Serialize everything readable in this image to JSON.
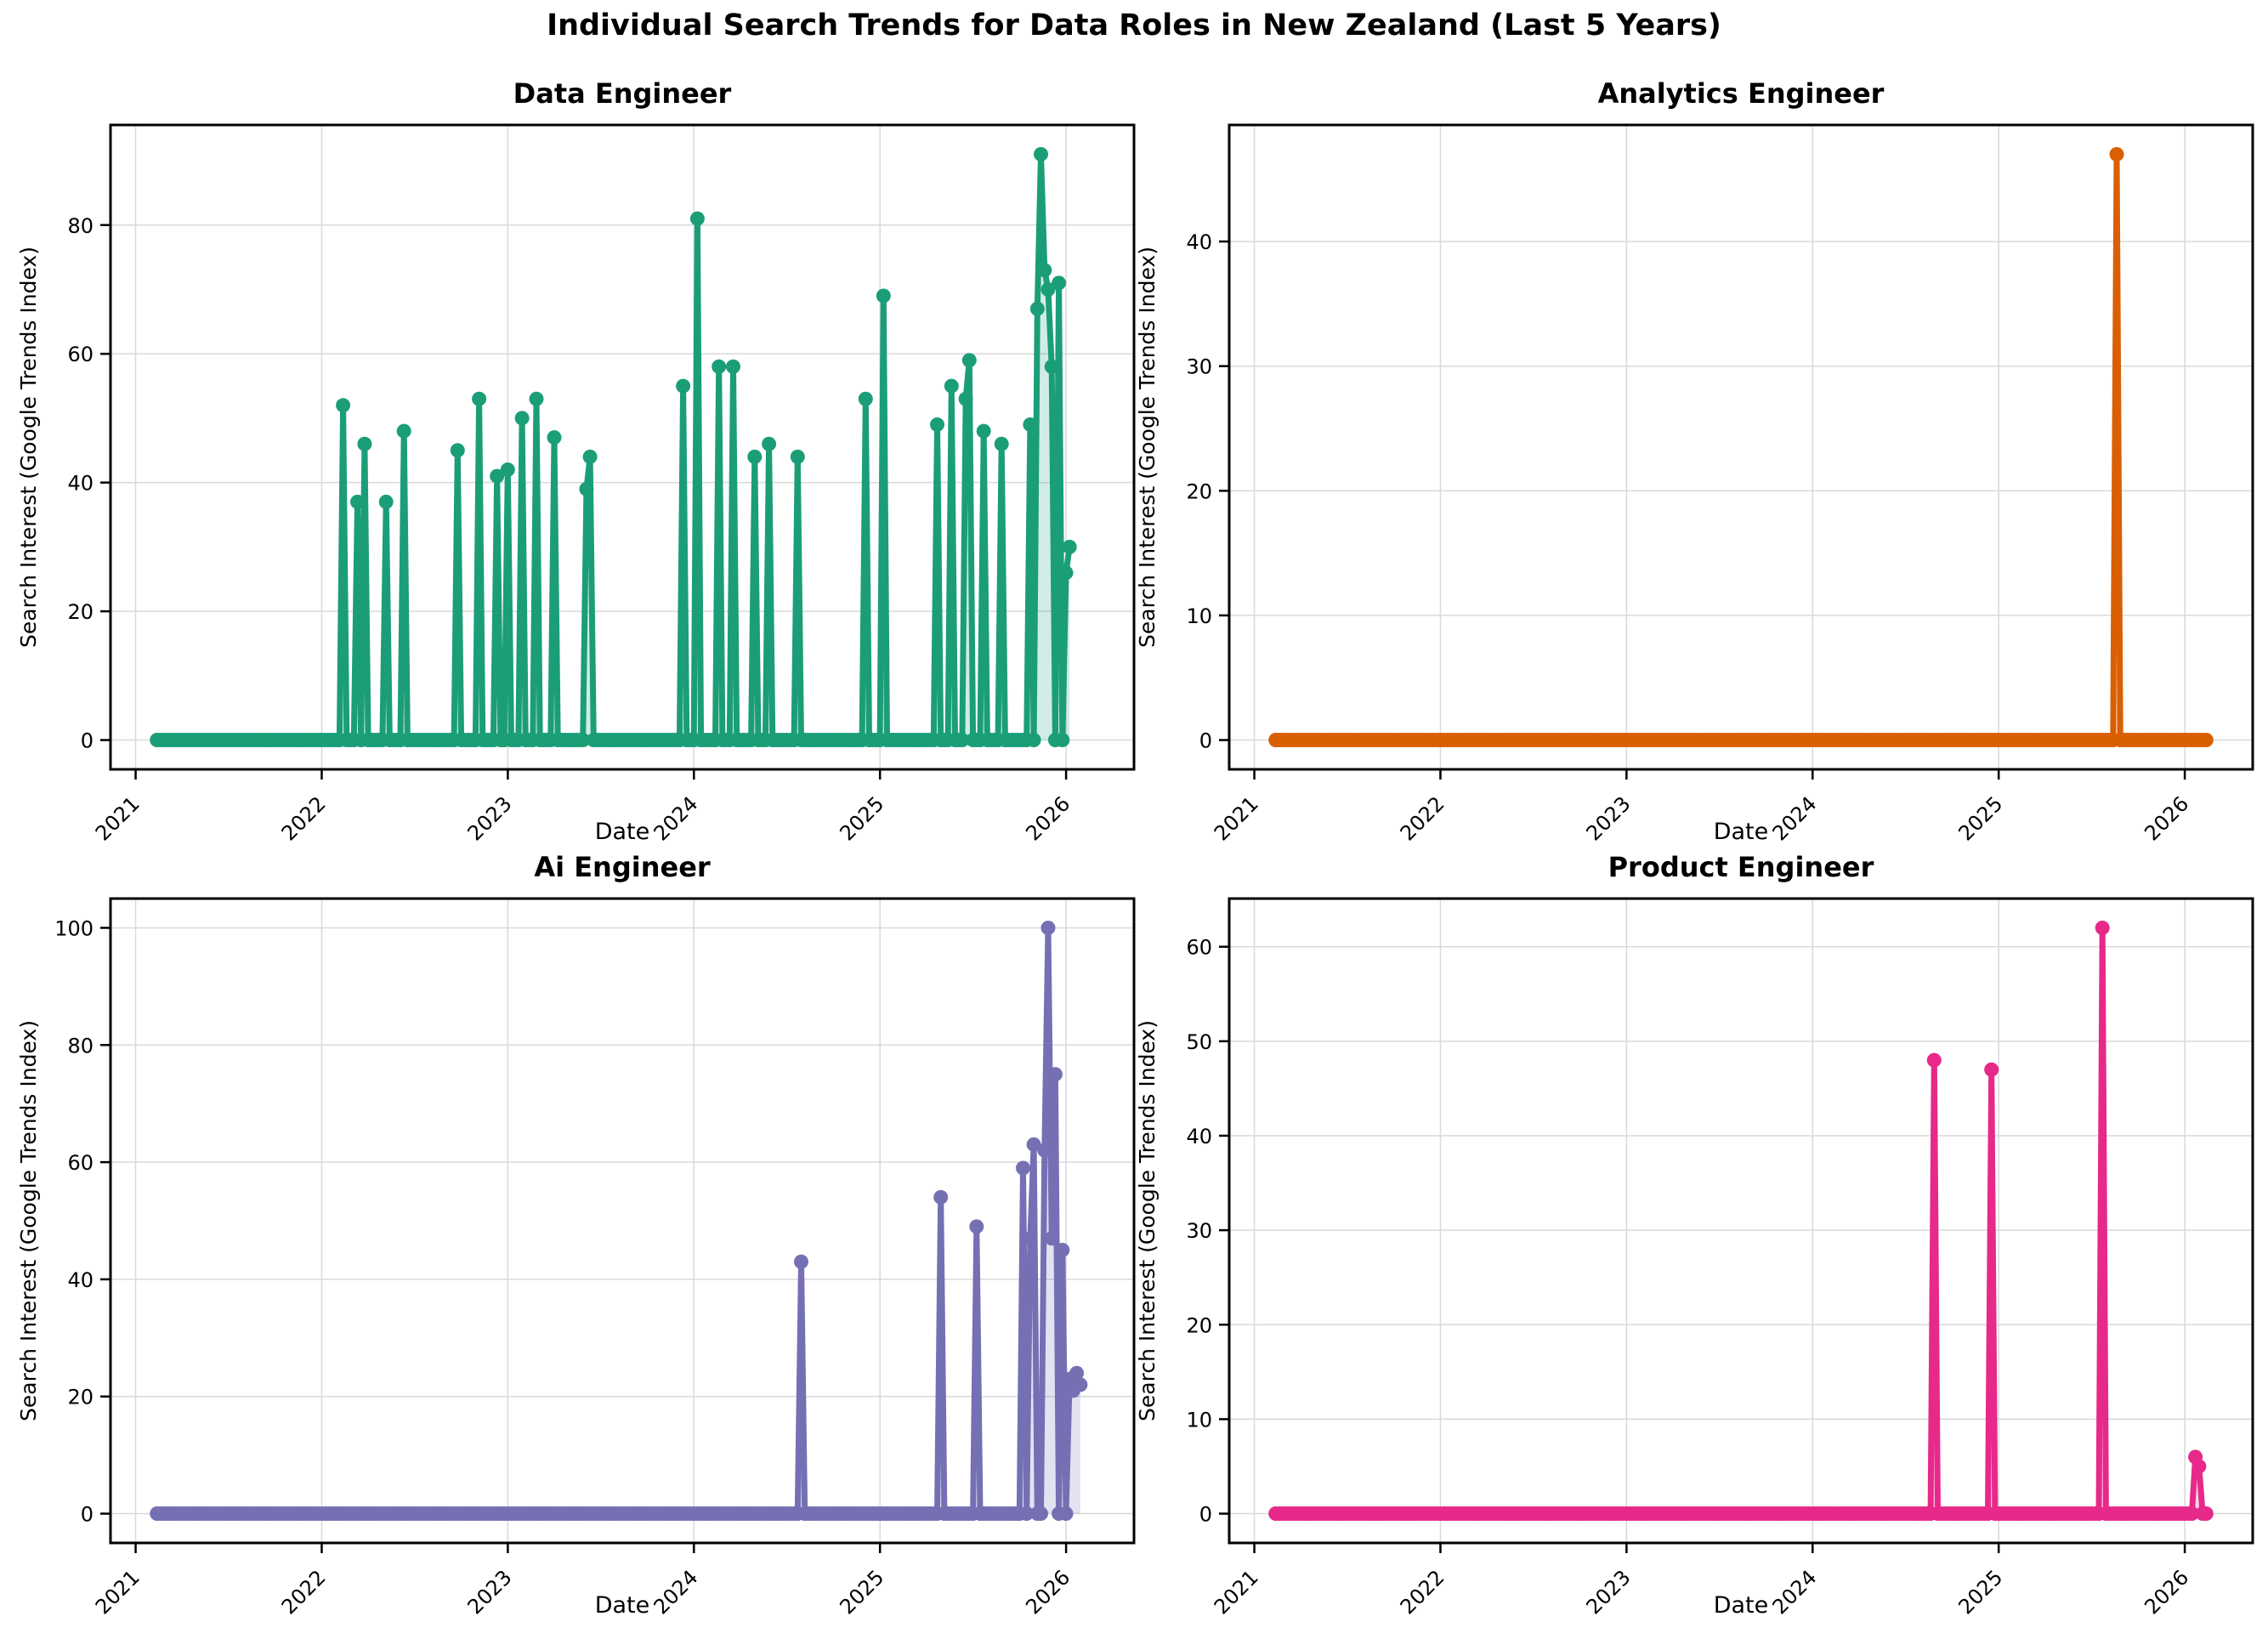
{
  "chart_data": {
    "type": "line",
    "suptitle": "Individual Search Trends for Data Roles in New Zealand (Last 5 Years)",
    "xlabel": "Date",
    "ylabel": "Search Interest (Google Trends Index)",
    "x_axis": {
      "start_year": 2021.115,
      "weeks_per_year": 52,
      "xlim": [
        2020.865,
        2026.365
      ],
      "ticks": [
        2021,
        2022,
        2023,
        2024,
        2025,
        2026
      ]
    },
    "charts": [
      {
        "title": "Data Engineer",
        "color": "#1b9e77",
        "fill_alpha": 0.2,
        "ylim": [
          -4.55,
          95.55
        ],
        "yticks": [
          0,
          20,
          40,
          60,
          80
        ],
        "end_week_index": 255,
        "spikes": [
          [
            2022.115,
            52
          ],
          [
            2022.19,
            37
          ],
          [
            2022.23,
            46
          ],
          [
            2022.35,
            37
          ],
          [
            2022.44,
            48
          ],
          [
            2022.73,
            45
          ],
          [
            2022.84,
            53
          ],
          [
            2022.94,
            41
          ],
          [
            2023.0,
            42
          ],
          [
            2023.08,
            50
          ],
          [
            2023.16,
            53
          ],
          [
            2023.25,
            47
          ],
          [
            2023.42,
            39
          ],
          [
            2023.44,
            44
          ],
          [
            2023.94,
            55
          ],
          [
            2024.02,
            81
          ],
          [
            2024.13,
            58
          ],
          [
            2024.21,
            58
          ],
          [
            2024.33,
            44
          ],
          [
            2024.4,
            46
          ],
          [
            2024.55,
            44
          ],
          [
            2024.93,
            53
          ],
          [
            2025.02,
            69
          ],
          [
            2025.3,
            49
          ],
          [
            2025.39,
            55
          ],
          [
            2025.46,
            53
          ],
          [
            2025.48,
            59
          ],
          [
            2025.56,
            48
          ],
          [
            2025.65,
            46
          ],
          [
            2025.8,
            49
          ],
          [
            2025.84,
            67
          ],
          [
            2025.87,
            91
          ],
          [
            2025.89,
            73
          ],
          [
            2025.91,
            70
          ],
          [
            2025.93,
            58
          ],
          [
            2025.97,
            71
          ],
          [
            2026.0,
            26
          ],
          [
            2026.02,
            30
          ]
        ]
      },
      {
        "title": "Analytics Engineer",
        "color": "#d95f02",
        "fill_alpha": 0.2,
        "ylim": [
          -2.35,
          49.35
        ],
        "yticks": [
          0,
          10,
          20,
          30,
          40
        ],
        "end_week_index": 260,
        "spikes": [
          [
            2025.63,
            47
          ]
        ]
      },
      {
        "title": "Ai Engineer",
        "color": "#7570b3",
        "fill_alpha": 0.2,
        "ylim": [
          -5,
          105
        ],
        "yticks": [
          0,
          20,
          40,
          60,
          80,
          100
        ],
        "end_week_index": 258,
        "spikes": [
          [
            2024.58,
            43
          ],
          [
            2025.33,
            54
          ],
          [
            2025.52,
            49
          ],
          [
            2025.77,
            59
          ],
          [
            2025.8,
            47
          ],
          [
            2025.82,
            63
          ],
          [
            2025.88,
            62
          ],
          [
            2025.9,
            100
          ],
          [
            2025.92,
            47
          ],
          [
            2025.94,
            75
          ],
          [
            2025.98,
            45
          ],
          [
            2026.02,
            23
          ],
          [
            2026.04,
            21
          ],
          [
            2026.06,
            24
          ],
          [
            2026.08,
            22
          ]
        ]
      },
      {
        "title": "Product Engineer",
        "color": "#e7298a",
        "fill_alpha": 0.2,
        "ylim": [
          -3.1,
          65.1
        ],
        "yticks": [
          0,
          10,
          20,
          30,
          40,
          50,
          60
        ],
        "end_week_index": 260,
        "spikes": [
          [
            2024.65,
            48
          ],
          [
            2024.96,
            47
          ],
          [
            2025.56,
            62
          ],
          [
            2026.06,
            6
          ],
          [
            2026.08,
            5
          ]
        ]
      }
    ]
  }
}
